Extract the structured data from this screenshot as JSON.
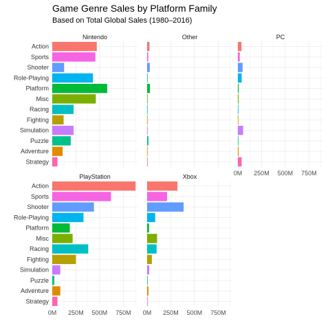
{
  "chart_data": {
    "type": "bar",
    "orientation": "horizontal",
    "title": "Game Genre Sales by Platform Family",
    "subtitle": "Based on Total Global Sales (1980–2016)",
    "xlabel": "",
    "ylabel": "",
    "xlim": [
      0,
      900
    ],
    "x_ticks": [
      0,
      250,
      500,
      750
    ],
    "x_tick_labels": [
      "0M",
      "250M",
      "500M",
      "750M"
    ],
    "categories": [
      "Action",
      "Sports",
      "Shooter",
      "Role-Playing",
      "Platform",
      "Misc",
      "Racing",
      "Fighting",
      "Simulation",
      "Puzzle",
      "Adventure",
      "Strategy"
    ],
    "category_colors": [
      "#F8766D",
      "#F564E3",
      "#619CFF",
      "#00B4EF",
      "#00BA38",
      "#7CAE00",
      "#00BFC4",
      "#B79F00",
      "#C77CFF",
      "#00C08B",
      "#DE8C00",
      "#FF64B0"
    ],
    "grid": true,
    "legend": "none",
    "facets": [
      {
        "name": "Nintendo",
        "values": [
          470,
          455,
          125,
          430,
          580,
          460,
          225,
          120,
          225,
          195,
          110,
          55
        ]
      },
      {
        "name": "Other",
        "values": [
          25,
          12,
          28,
          5,
          30,
          6,
          4,
          5,
          2,
          14,
          4,
          2
        ]
      },
      {
        "name": "PC",
        "values": [
          38,
          20,
          50,
          40,
          8,
          8,
          4,
          4,
          55,
          2,
          8,
          40
        ]
      },
      {
        "name": "PlayStation",
        "values": [
          880,
          620,
          440,
          330,
          185,
          215,
          380,
          250,
          85,
          22,
          85,
          55
        ]
      },
      {
        "name": "Xbox",
        "values": [
          320,
          210,
          385,
          85,
          20,
          105,
          100,
          50,
          22,
          2,
          14,
          3
        ]
      }
    ]
  }
}
